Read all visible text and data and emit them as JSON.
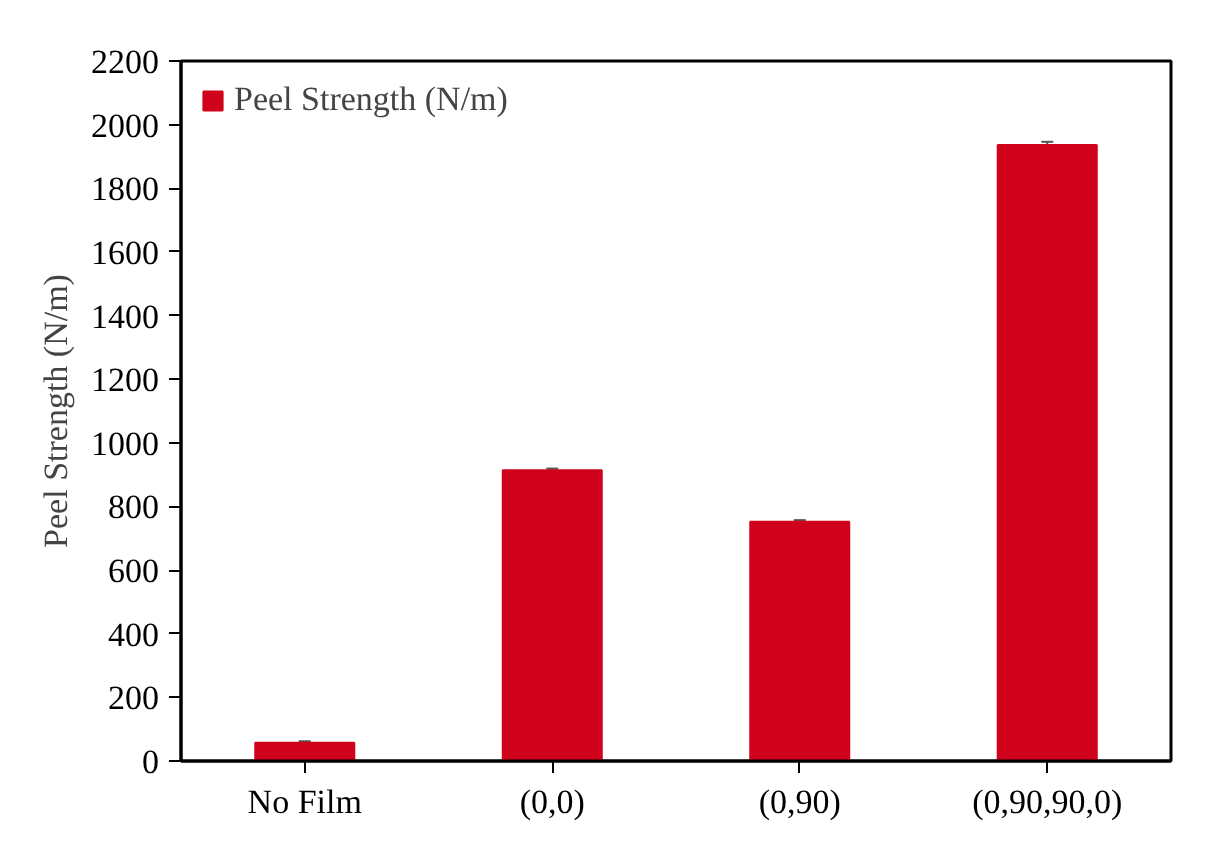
{
  "chart_data": {
    "type": "bar",
    "ylabel": "Peel Strength (N/m)",
    "categories": [
      "No Film",
      "(0,0)",
      "(0,90)",
      "(0,90,90,0)"
    ],
    "series": [
      {
        "name": "Peel Strength (N/m)",
        "color": "#d0021b",
        "values": [
          57,
          914,
          752,
          1936
        ],
        "errors": [
          5,
          5,
          5,
          10
        ]
      }
    ],
    "ylim": [
      0,
      2200
    ],
    "yticks": [
      0,
      200,
      400,
      600,
      800,
      1000,
      1200,
      1400,
      1600,
      1800,
      2000,
      2200
    ],
    "grid": false,
    "legend": "top left"
  }
}
